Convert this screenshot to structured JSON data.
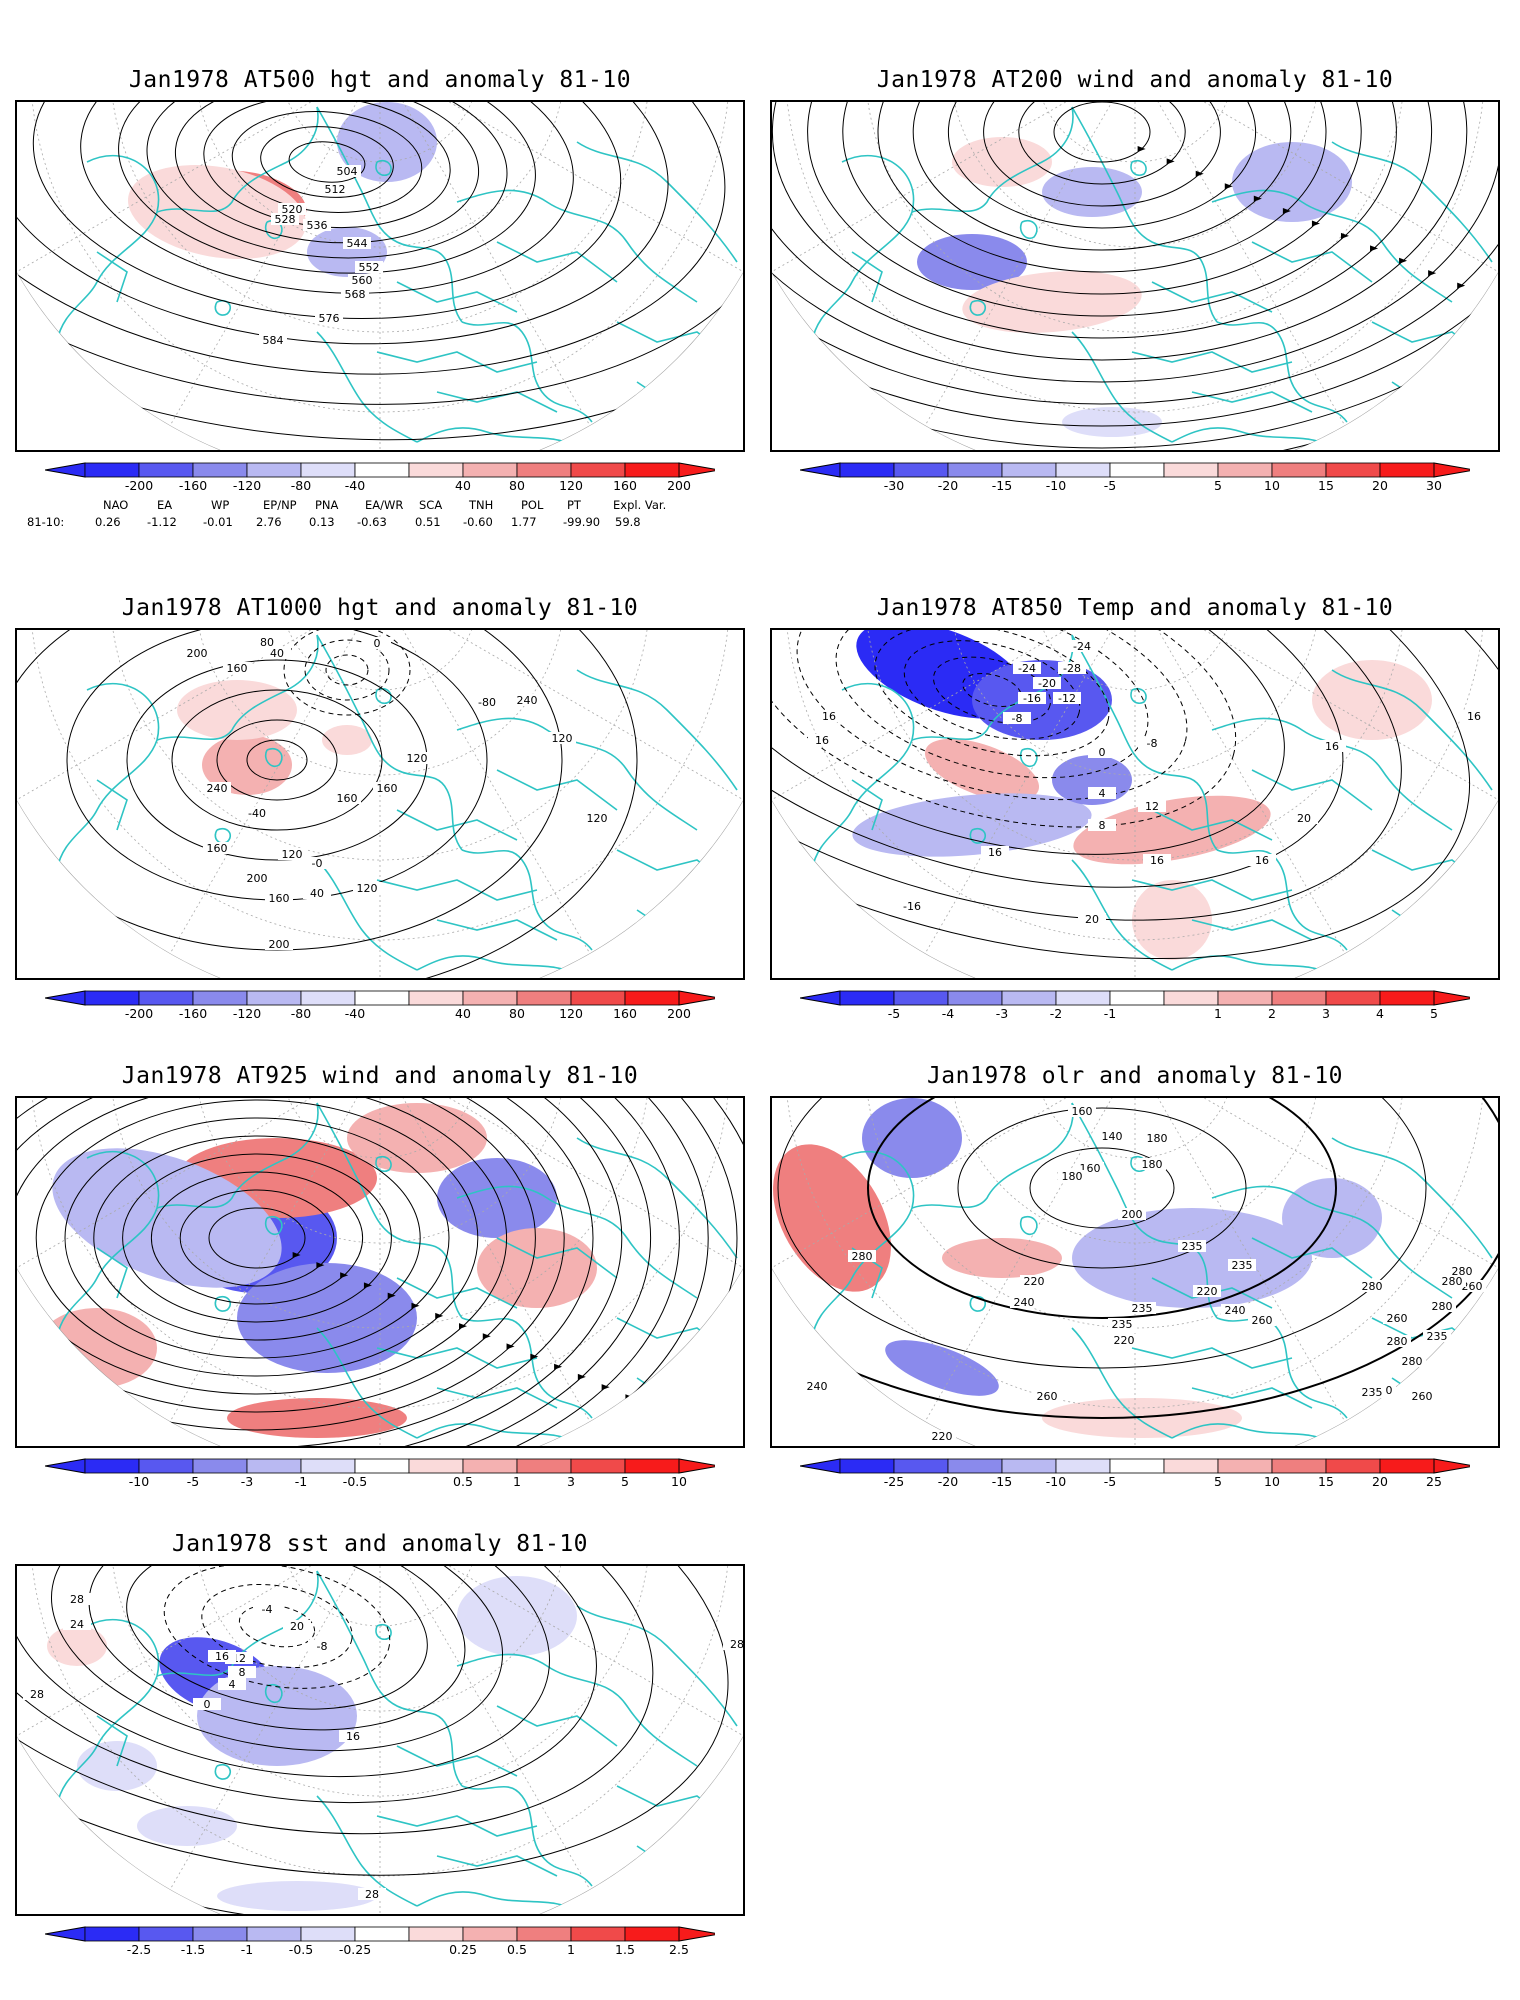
{
  "colors": {
    "coast": "#2ec4c4",
    "blue_scale": [
      "#2b2bf5",
      "#5858f0",
      "#8a8aec",
      "#b9b9f2",
      "#dedef9"
    ],
    "red_scale": [
      "#fadada",
      "#f4b1b1",
      "#ef7f7f",
      "#f04a4a",
      "#f71b1b"
    ],
    "contour": "#000000"
  },
  "panels": [
    {
      "id": "at500",
      "title": "Jan1978 AT500 hgt and anomaly 81-10",
      "contour_labels": [
        "504",
        "512",
        "520",
        "528",
        "536",
        "544",
        "552",
        "560",
        "568",
        "576",
        "584"
      ],
      "colorbar_ticks": [
        "-200",
        "-160",
        "-120",
        "-80",
        "-40",
        "40",
        "80",
        "120",
        "160",
        "200"
      ]
    },
    {
      "id": "at200",
      "title": "Jan1978 AT200 wind and anomaly 81-10",
      "contour_labels": [],
      "colorbar_ticks": [
        "-30",
        "-20",
        "-15",
        "-10",
        "-5",
        "5",
        "10",
        "15",
        "20",
        "30"
      ]
    },
    {
      "id": "at1000",
      "title": "Jan1978 AT1000 hgt and anomaly 81-10",
      "contour_labels": [
        "200",
        "160",
        "80",
        "40",
        "0",
        "-40",
        "120",
        "-0",
        "40",
        "160",
        "200",
        "240",
        "-80",
        "120",
        "120",
        "160",
        "160",
        "120",
        "120",
        "240",
        "200",
        "160"
      ],
      "colorbar_ticks": [
        "-200",
        "-160",
        "-120",
        "-80",
        "-40",
        "40",
        "80",
        "120",
        "160",
        "200"
      ]
    },
    {
      "id": "at850",
      "title": "Jan1978 AT850 Temp and anomaly 81-10",
      "contour_labels": [
        "-24",
        "-24",
        "-28",
        "-20",
        "-16",
        "-12",
        "-8",
        "16",
        "16",
        "-8",
        "0",
        "4",
        "8",
        "12",
        "16",
        "20",
        "16",
        "-16",
        "16",
        "20",
        "16",
        "16"
      ],
      "colorbar_ticks": [
        "-5",
        "-4",
        "-3",
        "-2",
        "-1",
        "1",
        "2",
        "3",
        "4",
        "5"
      ]
    },
    {
      "id": "at925",
      "title": "Jan1978 AT925 wind and anomaly 81-10",
      "contour_labels": [],
      "colorbar_ticks": [
        "-10",
        "-5",
        "-3",
        "-1",
        "-0.5",
        "0.5",
        "1",
        "3",
        "5",
        "10"
      ]
    },
    {
      "id": "olr",
      "title": "Jan1978 olr and anomaly 81-10",
      "contour_labels": [
        "160",
        "140",
        "180",
        "180",
        "160",
        "180",
        "200",
        "180",
        "260",
        "235",
        "280",
        "235",
        "220",
        "240",
        "220",
        "235",
        "220",
        "235",
        "240",
        "260",
        "280",
        "260",
        "220",
        "260",
        "280",
        "235",
        "240",
        "260",
        "280",
        "280",
        "280",
        "280",
        "220",
        "235"
      ],
      "colorbar_ticks": [
        "-25",
        "-20",
        "-15",
        "-10",
        "-5",
        "5",
        "10",
        "15",
        "20",
        "25"
      ]
    },
    {
      "id": "sst",
      "title": "Jan1978 sst and anomaly 81-10",
      "contour_labels": [
        "28",
        "24",
        "28",
        "0",
        "4",
        "8",
        "12",
        "16",
        "20",
        "-4",
        "-8",
        "16",
        "28",
        "28"
      ],
      "colorbar_ticks": [
        "-2.5",
        "-1.5",
        "-1",
        "-0.5",
        "-0.25",
        "0.25",
        "0.5",
        "1",
        "1.5",
        "2.5"
      ]
    }
  ],
  "teleconnections": {
    "headers": [
      "NAO",
      "EA",
      "WP",
      "EP/NP",
      "PNA",
      "EA/WR",
      "SCA",
      "TNH",
      "POL",
      "PT",
      "Expl. Var."
    ],
    "row_label": "81-10:",
    "values": [
      "0.26",
      "-1.12",
      "-0.01",
      "2.76",
      "0.13",
      "-0.63",
      "0.51",
      "-0.60",
      "1.77",
      "-99.90",
      "59.8"
    ]
  }
}
